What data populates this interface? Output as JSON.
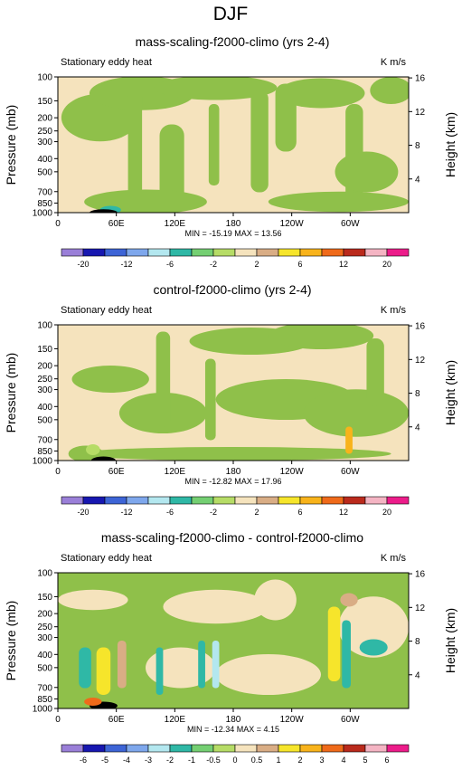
{
  "page_title": "DJF",
  "units": "K m/s",
  "x_ticks": [
    "0",
    "60E",
    "120E",
    "180",
    "120W",
    "60W"
  ],
  "x_tick_lons": [
    0,
    60,
    120,
    180,
    240,
    300
  ],
  "colors": {
    "scale1": [
      "#9a7fd8",
      "#1717b0",
      "#3d64d6",
      "#7ea7ec",
      "#b3e7ef",
      "#2fb8a6",
      "#74cf72",
      "#b6dc66",
      "#f5e3bd",
      "#d9ad85",
      "#f6e52b",
      "#f8b31b",
      "#ef6a1a",
      "#ba2a1c",
      "#f4b4c3",
      "#ec1c8a"
    ],
    "scale2": [
      "#9a7fd8",
      "#1717b0",
      "#3d64d6",
      "#7ea7ec",
      "#b3e7ef",
      "#2fb8a6",
      "#74cf72",
      "#b6dc66",
      "#f5e3bd",
      "#d9ad85",
      "#f6e52b",
      "#f8b31b",
      "#ef6a1a",
      "#ba2a1c",
      "#f4b4c3",
      "#ec1c8a"
    ],
    "background": "#f5e3bd",
    "green": "#8fc04a"
  },
  "chart_data": [
    {
      "type": "heatmap",
      "title": "mass-scaling-f2000-climo (yrs 2-4)",
      "field_label": "Stationary eddy heat",
      "units": "K m/s",
      "ylabel": "Pressure (mb)",
      "ylabel_right": "Height (km)",
      "y_ticks": [
        100,
        150,
        200,
        250,
        300,
        400,
        500,
        700,
        850,
        1000
      ],
      "y_ticks_right": [
        16,
        12,
        8,
        4
      ],
      "x_ticks": [
        "0",
        "60E",
        "120E",
        "180",
        "120W",
        "60W"
      ],
      "xlim": [
        0,
        360
      ],
      "ylim": [
        1000,
        100
      ],
      "stats": "MIN = -15.19   MAX = 13.56",
      "min": -15.19,
      "max": 13.56,
      "colorbar_labels": [
        "-20",
        "-12",
        "-6",
        "-2",
        "2",
        "6",
        "12",
        "20"
      ],
      "colorbar_label_slots": [
        1,
        3,
        5,
        7,
        9,
        11,
        13,
        15
      ],
      "colorbar_colors": "scale1"
    },
    {
      "type": "heatmap",
      "title": "control-f2000-climo (yrs 2-4)",
      "field_label": "Stationary eddy heat",
      "units": "K m/s",
      "ylabel": "Pressure (mb)",
      "ylabel_right": "Height (km)",
      "y_ticks": [
        100,
        150,
        200,
        250,
        300,
        400,
        500,
        700,
        850,
        1000
      ],
      "y_ticks_right": [
        16,
        12,
        8,
        4
      ],
      "x_ticks": [
        "0",
        "60E",
        "120E",
        "180",
        "120W",
        "60W"
      ],
      "xlim": [
        0,
        360
      ],
      "ylim": [
        1000,
        100
      ],
      "stats": "MIN = -12.82   MAX = 17.96",
      "min": -12.82,
      "max": 17.96,
      "colorbar_labels": [
        "-20",
        "-12",
        "-6",
        "-2",
        "2",
        "6",
        "12",
        "20"
      ],
      "colorbar_label_slots": [
        1,
        3,
        5,
        7,
        9,
        11,
        13,
        15
      ],
      "colorbar_colors": "scale1"
    },
    {
      "type": "heatmap",
      "title": "mass-scaling-f2000-climo - control-f2000-climo",
      "field_label": "Stationary eddy heat",
      "units": "K m/s",
      "ylabel": "Pressure (mb)",
      "ylabel_right": "Height (km)",
      "y_ticks": [
        100,
        150,
        200,
        250,
        300,
        400,
        500,
        700,
        850,
        1000
      ],
      "y_ticks_right": [
        16,
        12,
        8,
        4
      ],
      "x_ticks": [
        "0",
        "60E",
        "120E",
        "180",
        "120W",
        "60W"
      ],
      "xlim": [
        0,
        360
      ],
      "ylim": [
        1000,
        100
      ],
      "stats": "MIN = -12.34   MAX =  4.15",
      "min": -12.34,
      "max": 4.15,
      "colorbar_labels": [
        "-6",
        "-5",
        "-4",
        "-3",
        "-2",
        "-1",
        "-0.5",
        "0",
        "0.5",
        "1",
        "2",
        "3",
        "4",
        "5",
        "6"
      ],
      "colorbar_label_slots": [
        1,
        2,
        3,
        4,
        5,
        6,
        7,
        8,
        9,
        10,
        11,
        12,
        13,
        14,
        15
      ],
      "colorbar_colors": "scale2"
    }
  ]
}
